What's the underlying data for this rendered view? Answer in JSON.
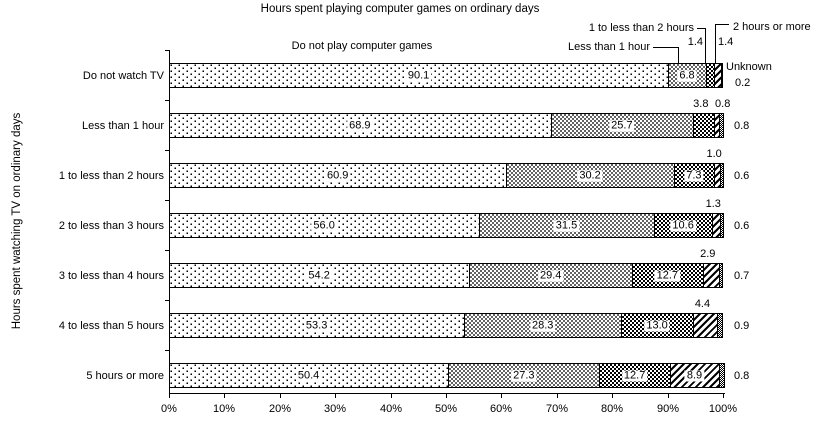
{
  "chart_data": {
    "type": "bar",
    "stacked": true,
    "orientation": "horizontal",
    "title": "Hours spent playing computer games on ordinary days",
    "ylabel": "Hours spent watching TV on ordinary days",
    "xlim": [
      0,
      100
    ],
    "x_tick_labels": [
      "0%",
      "10%",
      "20%",
      "30%",
      "40%",
      "50%",
      "60%",
      "70%",
      "80%",
      "90%",
      "100%"
    ],
    "grid": false,
    "legend_position": "callouts-top-right",
    "value_format": "one-decimal-percent",
    "colors": {
      "ink": "#000000",
      "paper": "#ffffff"
    },
    "categories": [
      "Do not watch TV",
      "Less than 1 hour",
      "1 to less than 2 hours",
      "2 to less than 3 hours",
      "3 to less than 4 hours",
      "4 to less than 5 hours",
      "5 hours or more"
    ],
    "series": [
      {
        "name": "Do not play computer games",
        "pattern": "dots-sparse",
        "values": [
          90.1,
          68.9,
          60.9,
          56.0,
          54.2,
          53.3,
          50.4
        ]
      },
      {
        "name": "Less than 1 hour",
        "pattern": "dots-dense",
        "values": [
          6.8,
          25.7,
          30.2,
          31.5,
          29.4,
          28.3,
          27.3
        ]
      },
      {
        "name": "1 to less than 2 hours",
        "pattern": "checkerboard",
        "values": [
          1.4,
          3.8,
          7.3,
          10.6,
          12.7,
          13.0,
          12.7
        ]
      },
      {
        "name": "2 hours or more",
        "pattern": "diagonal-stripes",
        "values": [
          1.4,
          0.8,
          1.0,
          1.3,
          2.9,
          4.4,
          8.9
        ]
      },
      {
        "name": "Unknown",
        "pattern": "fine-checkerboard",
        "values": [
          0.2,
          0.8,
          0.6,
          0.6,
          0.7,
          0.9,
          0.8
        ]
      }
    ]
  }
}
